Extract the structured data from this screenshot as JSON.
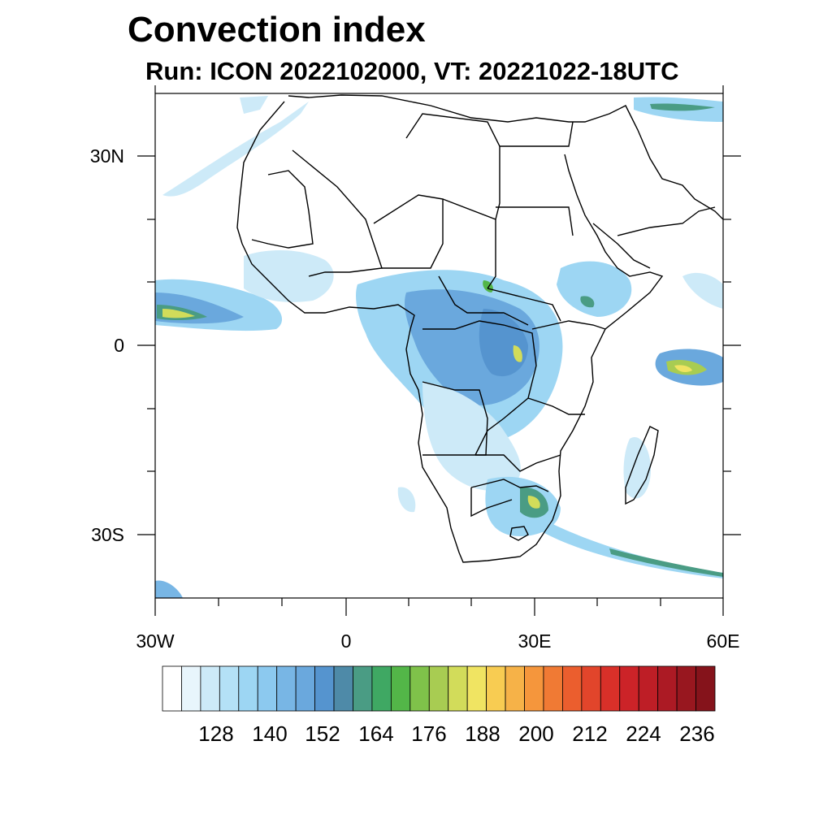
{
  "title": "Convection index",
  "subtitle": "Run: ICON 2022102000,  VT: 20221022-18UTC",
  "axes": {
    "lon_ticks": [
      "30W",
      "0",
      "30E",
      "60E"
    ],
    "lat_ticks": [
      "30N",
      "0",
      "30S"
    ]
  },
  "colorbar": {
    "labels": [
      "128",
      "140",
      "152",
      "164",
      "176",
      "188",
      "200",
      "212",
      "224",
      "236"
    ],
    "colors": [
      "#ffffff",
      "#e8f5fc",
      "#cdeaf8",
      "#b4e1f6",
      "#9dd6f3",
      "#8cc9ef",
      "#78b6e5",
      "#6aa8dd",
      "#5594cf",
      "#4e8aa8",
      "#4a9c84",
      "#3fa863",
      "#53b648",
      "#7fc24a",
      "#a8cc52",
      "#d2dc5a",
      "#f0e462",
      "#f8cc52",
      "#f6b248",
      "#f5963c",
      "#f07a34",
      "#eb5e2e",
      "#e2452b",
      "#d93029",
      "#cc2328",
      "#be1e26",
      "#ac1a24",
      "#98171f",
      "#85131b"
    ]
  },
  "colors": {
    "light_convection": "#9cd2f0",
    "medium_convection": "#5e9fd6",
    "strong_convection": "#4aa876",
    "peak_convection": "#e8e05a",
    "coastline": "#000000"
  }
}
